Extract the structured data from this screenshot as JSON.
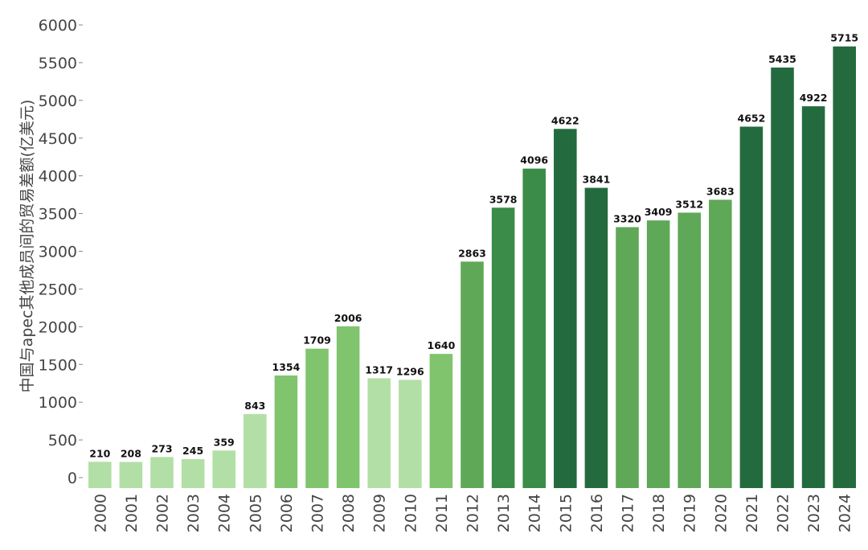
{
  "chart_data": {
    "type": "bar",
    "title": "",
    "xlabel": "",
    "ylabel": "中国与apec其他成员间的贸易差额(亿美元)",
    "ylim": [
      0,
      6000
    ],
    "yticks": [
      0,
      500,
      1000,
      1500,
      2000,
      2500,
      3000,
      3500,
      4000,
      4500,
      5000,
      5500,
      6000
    ],
    "grid": false,
    "legend": "none",
    "categories": [
      "2000",
      "2001",
      "2002",
      "2003",
      "2004",
      "2005",
      "2006",
      "2007",
      "2008",
      "2009",
      "2010",
      "2011",
      "2012",
      "2013",
      "2014",
      "2015",
      "2016",
      "2017",
      "2018",
      "2019",
      "2020",
      "2021",
      "2022",
      "2023",
      "2024"
    ],
    "values": [
      210,
      208,
      273,
      245,
      359,
      843,
      1354,
      1709,
      2006,
      1317,
      1296,
      1640,
      2863,
      3578,
      4096,
      4622,
      3841,
      3320,
      3409,
      3512,
      3683,
      4652,
      5435,
      4922,
      5715
    ],
    "colors": [
      "#b2dfa5",
      "#b2dfa5",
      "#b2dfa5",
      "#b2dfa5",
      "#b2dfa5",
      "#b2dfa5",
      "#80c46e",
      "#80c46e",
      "#80c46e",
      "#b2dfa5",
      "#b2dfa5",
      "#80c46e",
      "#5fa857",
      "#3a8c48",
      "#3a8c48",
      "#236b3e",
      "#236b3e",
      "#5fa857",
      "#5fa857",
      "#5fa857",
      "#5fa857",
      "#236b3e",
      "#236b3e",
      "#236b3e",
      "#236b3e"
    ]
  }
}
